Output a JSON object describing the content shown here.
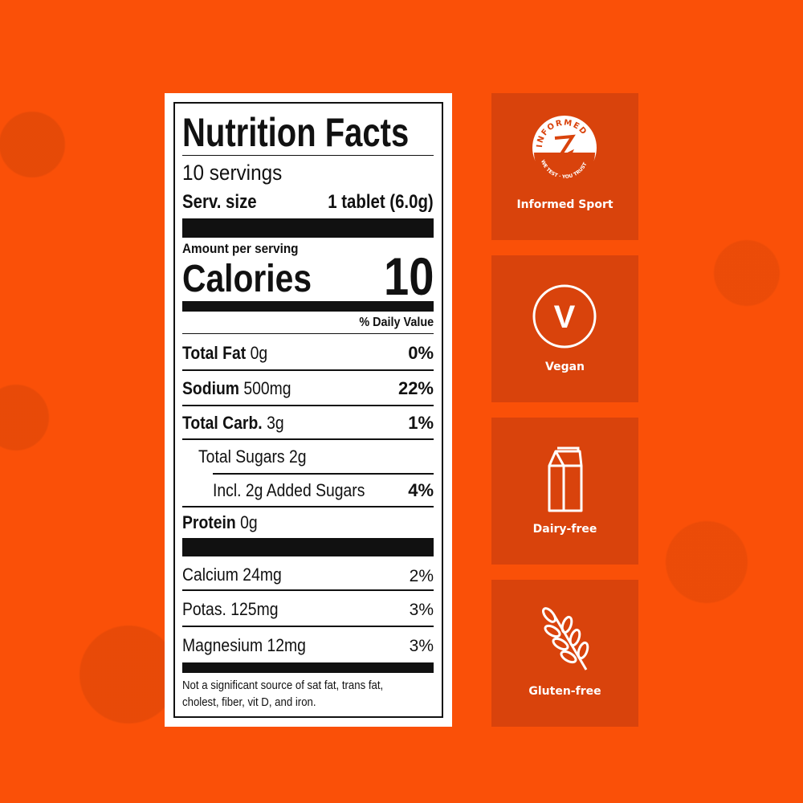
{
  "label": {
    "title": "Nutrition Facts",
    "servings": "10 servings",
    "serv_size_label": "Serv. size",
    "serv_size_value": "1 tablet (6.0g)",
    "amount_per_serving": "Amount per serving",
    "calories_label": "Calories",
    "calories_value": "10",
    "daily_value_header": "% Daily Value",
    "nutrients": [
      {
        "name": "Total Fat",
        "amount": "0g",
        "dv": "0%"
      },
      {
        "name": "Sodium",
        "amount": "500mg",
        "dv": "22%"
      },
      {
        "name": "Total Carb.",
        "amount": "3g",
        "dv": "1%"
      },
      {
        "name": "Total Sugars 2g",
        "amount": "",
        "dv": ""
      },
      {
        "name": "Incl. 2g Added Sugars",
        "amount": "",
        "dv": "4%"
      },
      {
        "name": "Protein",
        "amount": "0g",
        "dv": ""
      }
    ],
    "minerals": [
      {
        "name": "Calcium 24mg",
        "dv": "2%"
      },
      {
        "name": "Potas. 125mg",
        "dv": "3%"
      },
      {
        "name": "Magnesium 12mg",
        "dv": "3%"
      }
    ],
    "footnote_1": "Not a significant source of sat fat, trans fat,",
    "footnote_2": "cholest, fiber, vit D, and iron."
  },
  "badges": [
    {
      "label": "Informed Sport",
      "icon": "informed-sport-seal-icon",
      "seal_top": "INFORMED",
      "seal_bottom": "WE TEST · YOU TRUST"
    },
    {
      "label": "Vegan",
      "icon": "vegan-v-icon",
      "letter": "V"
    },
    {
      "label": "Dairy-free",
      "icon": "milk-carton-icon"
    },
    {
      "label": "Gluten-free",
      "icon": "wheat-icon"
    }
  ],
  "colors": {
    "background": "#fa5008",
    "badge": "#d9430c"
  }
}
